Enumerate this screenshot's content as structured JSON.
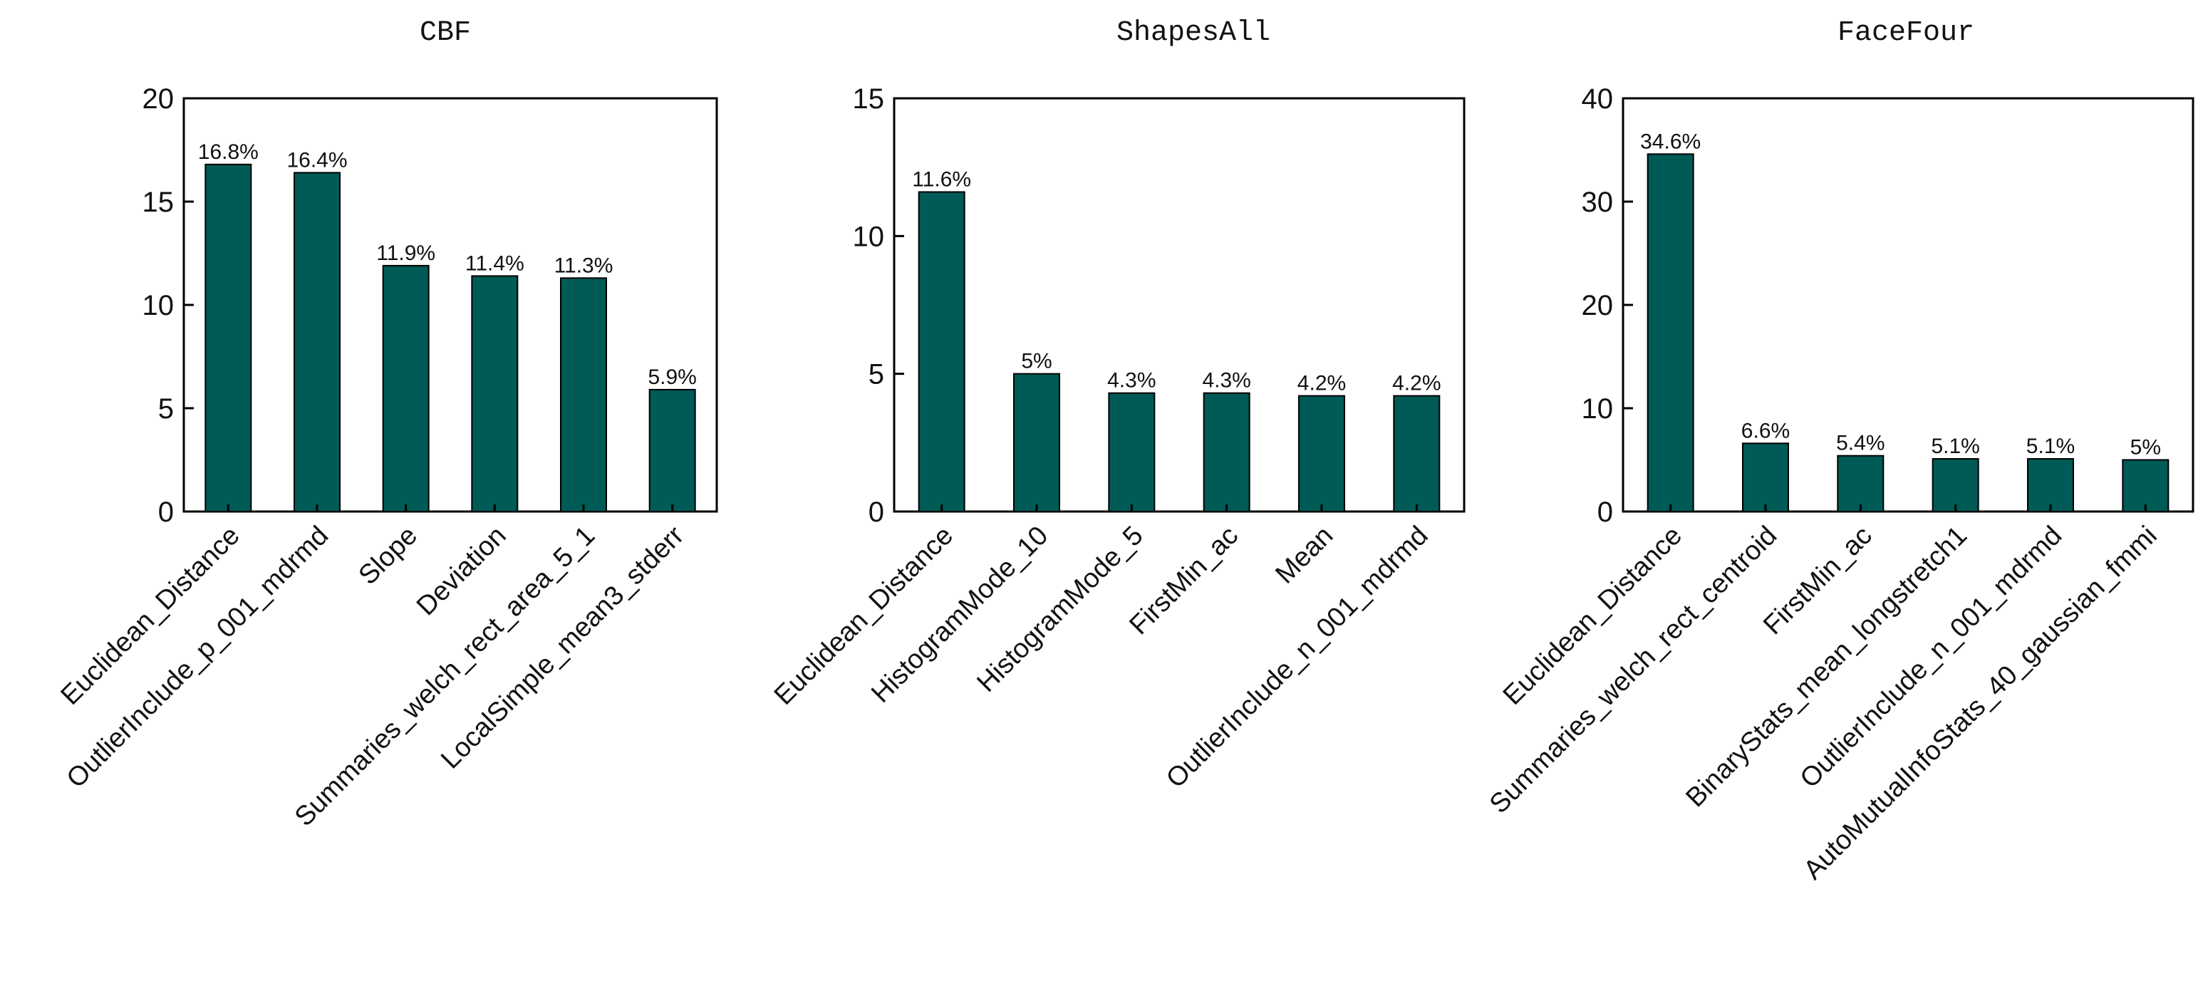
{
  "chart_data": [
    {
      "type": "bar",
      "title": "CBF",
      "categories": [
        "Euclidean_Distance",
        "OutlierInclude_p_001_mdrmd",
        "Slope",
        "Deviation",
        "Summaries_welch_rect_area_5_1",
        "LocalSimple_mean3_stderr"
      ],
      "values": [
        16.8,
        16.4,
        11.9,
        11.4,
        11.3,
        5.9
      ],
      "data_labels": [
        "16.8%",
        "16.4%",
        "11.9%",
        "11.4%",
        "11.3%",
        "5.9%"
      ],
      "ylim": [
        0,
        20
      ],
      "yticks": [
        0,
        5,
        10,
        15,
        20
      ],
      "bar_color": "#005a55",
      "grid": false
    },
    {
      "type": "bar",
      "title": "ShapesAll",
      "categories": [
        "Euclidean_Distance",
        "HistogramMode_10",
        "HistogramMode_5",
        "FirstMin_ac",
        "Mean",
        "OutlierInclude_n_001_mdrmd"
      ],
      "values": [
        11.6,
        5.0,
        4.3,
        4.3,
        4.2,
        4.2
      ],
      "data_labels": [
        "11.6%",
        "5%",
        "4.3%",
        "4.3%",
        "4.2%",
        "4.2%"
      ],
      "ylim": [
        0,
        15
      ],
      "yticks": [
        0,
        5,
        10,
        15
      ],
      "bar_color": "#005a55",
      "grid": false
    },
    {
      "type": "bar",
      "title": "FaceFour",
      "categories": [
        "Euclidean_Distance",
        "Summaries_welch_rect_centroid",
        "FirstMin_ac",
        "BinaryStats_mean_longstretch1",
        "OutlierInclude_n_001_mdrmd",
        "AutoMutualInfoStats_40_gaussian_fmmi"
      ],
      "values": [
        34.6,
        6.6,
        5.4,
        5.1,
        5.1,
        5.0
      ],
      "data_labels": [
        "34.6%",
        "6.6%",
        "5.4%",
        "5.1%",
        "5.1%",
        "5%"
      ],
      "ylim": [
        0,
        40
      ],
      "yticks": [
        0,
        10,
        20,
        30,
        40
      ],
      "bar_color": "#005a55",
      "grid": false
    }
  ]
}
